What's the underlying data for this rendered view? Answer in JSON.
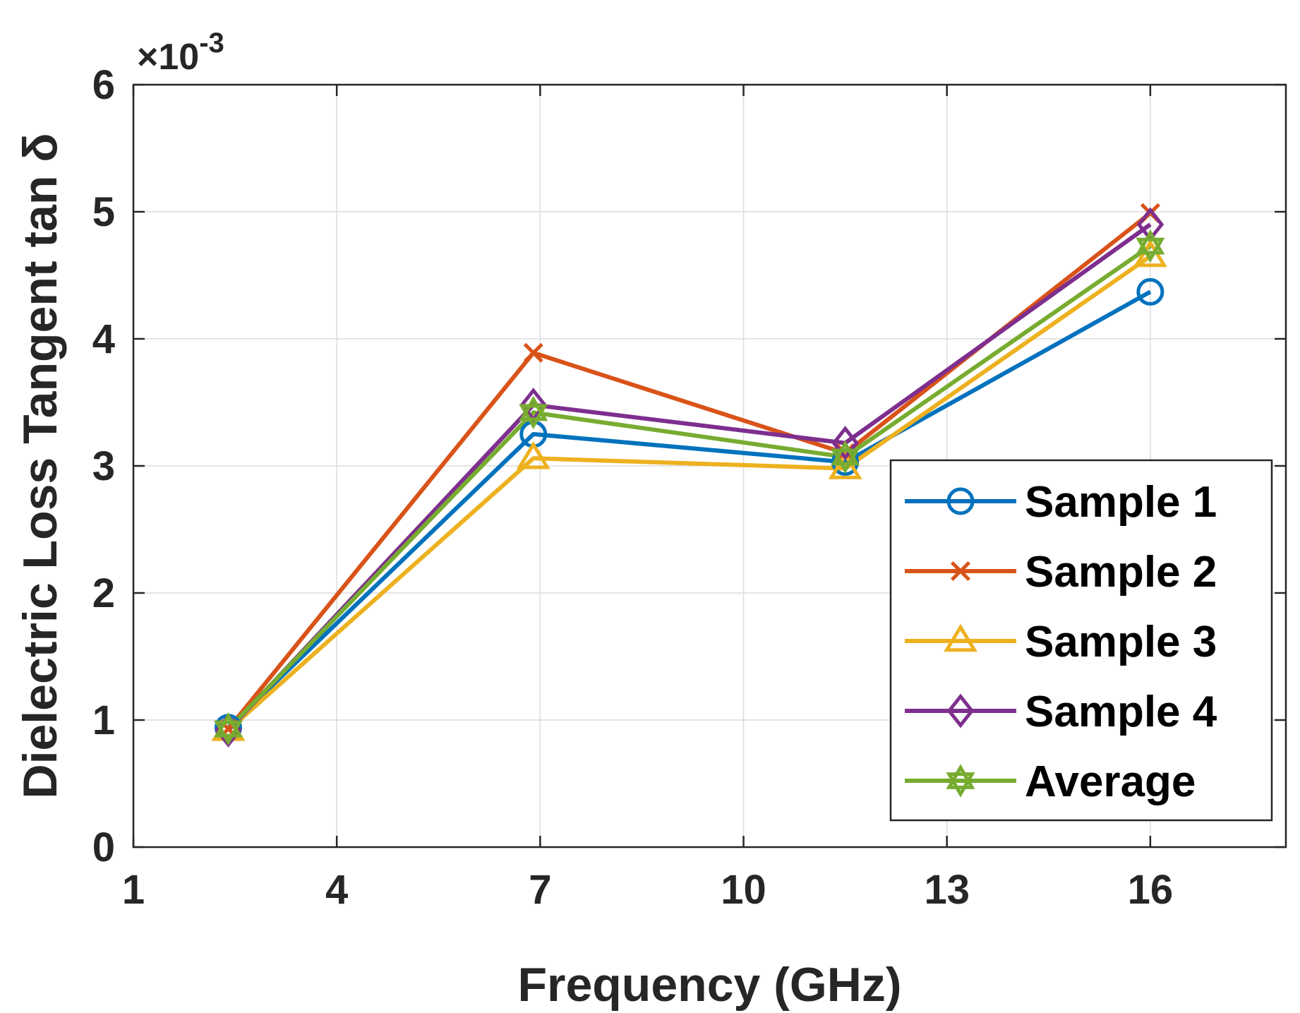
{
  "chart_data": {
    "type": "line",
    "title": "",
    "xlabel": "Frequency (GHz)",
    "ylabel": "Dielectric Loss Tangent tan δ",
    "y_exponent_label": {
      "prefix": "×10",
      "exponent": "-3"
    },
    "xlim": [
      1,
      18
    ],
    "ylim": [
      0,
      6
    ],
    "xticks": [
      1,
      4,
      7,
      10,
      13,
      16
    ],
    "yticks": [
      0,
      1,
      2,
      3,
      4,
      5,
      6
    ],
    "grid": true,
    "legend_position": "bottom-right",
    "x": [
      2.4,
      6.9,
      11.5,
      16
    ],
    "series": [
      {
        "name": "Sample 1",
        "marker": "circle",
        "color": "#0072BD",
        "values": [
          0.94,
          3.25,
          3.03,
          4.37
        ]
      },
      {
        "name": "Sample 2",
        "marker": "x",
        "color": "#D95319",
        "values": [
          0.93,
          3.89,
          3.1,
          4.99
        ]
      },
      {
        "name": "Sample 3",
        "marker": "triangle",
        "color": "#EDB120",
        "values": [
          0.92,
          3.06,
          2.98,
          4.65
        ]
      },
      {
        "name": "Sample 4",
        "marker": "diamond",
        "color": "#7E2F8E",
        "values": [
          0.92,
          3.48,
          3.18,
          4.9
        ]
      },
      {
        "name": "Average",
        "marker": "hexagram",
        "color": "#77AC30",
        "values": [
          0.93,
          3.42,
          3.07,
          4.73
        ]
      }
    ]
  }
}
